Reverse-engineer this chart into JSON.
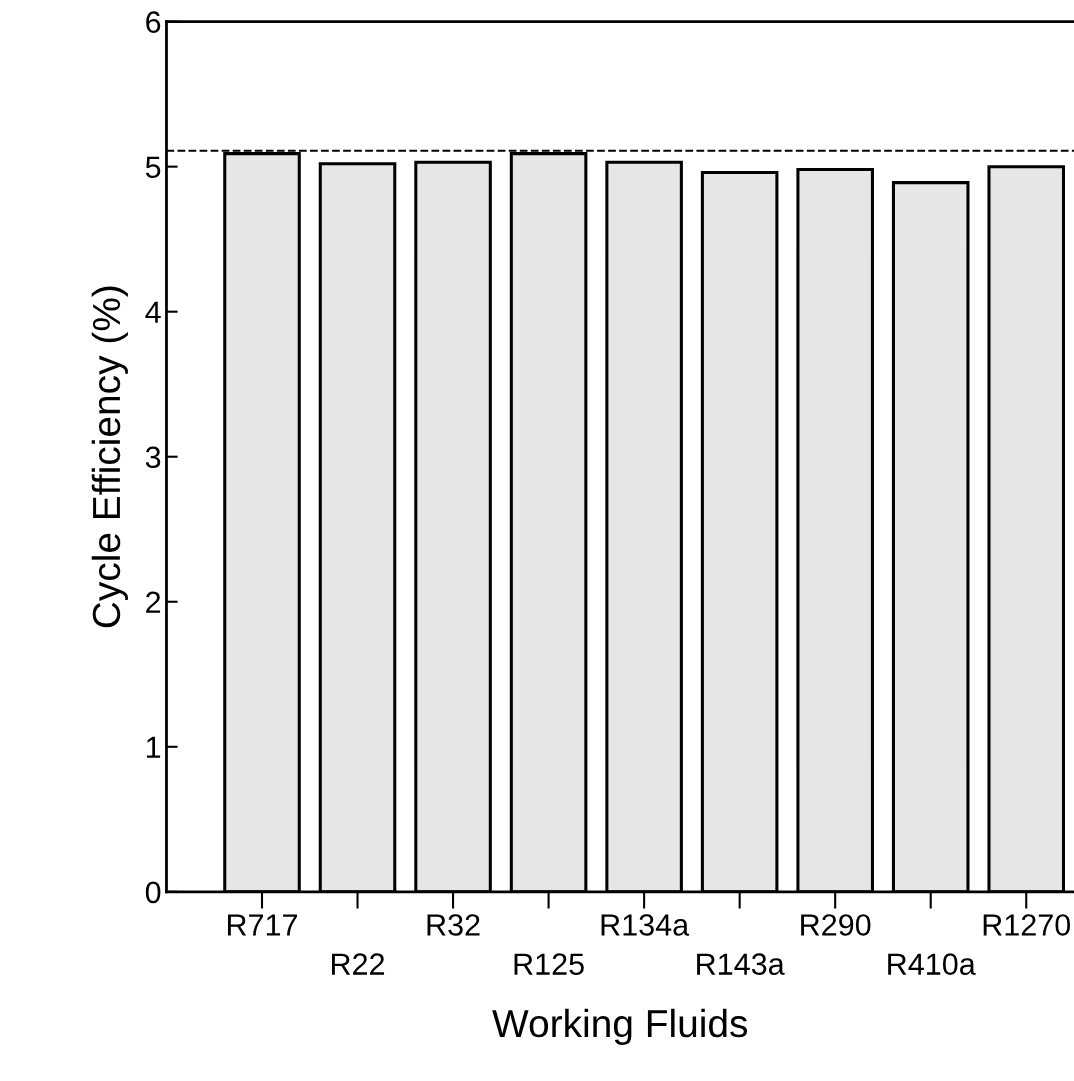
{
  "chart_data": {
    "type": "bar",
    "xlabel": "Working Fluids",
    "ylabel": "Cycle Efficiency (%)",
    "categories": [
      "R717",
      "R22",
      "R32",
      "R125",
      "R134a",
      "R143a",
      "R290",
      "R410a",
      "R1270"
    ],
    "values": [
      5.09,
      5.02,
      5.03,
      5.09,
      5.03,
      4.96,
      4.98,
      4.89,
      5.0
    ],
    "color": "#e6e6e6",
    "ylim": [
      0,
      6
    ],
    "yticks": [
      0,
      1,
      2,
      3,
      4,
      5,
      6
    ],
    "grid": false,
    "ref_lines": [
      {
        "axis": "y",
        "value": 5.11,
        "line_style": "dashed",
        "color": "#000000"
      }
    ]
  }
}
